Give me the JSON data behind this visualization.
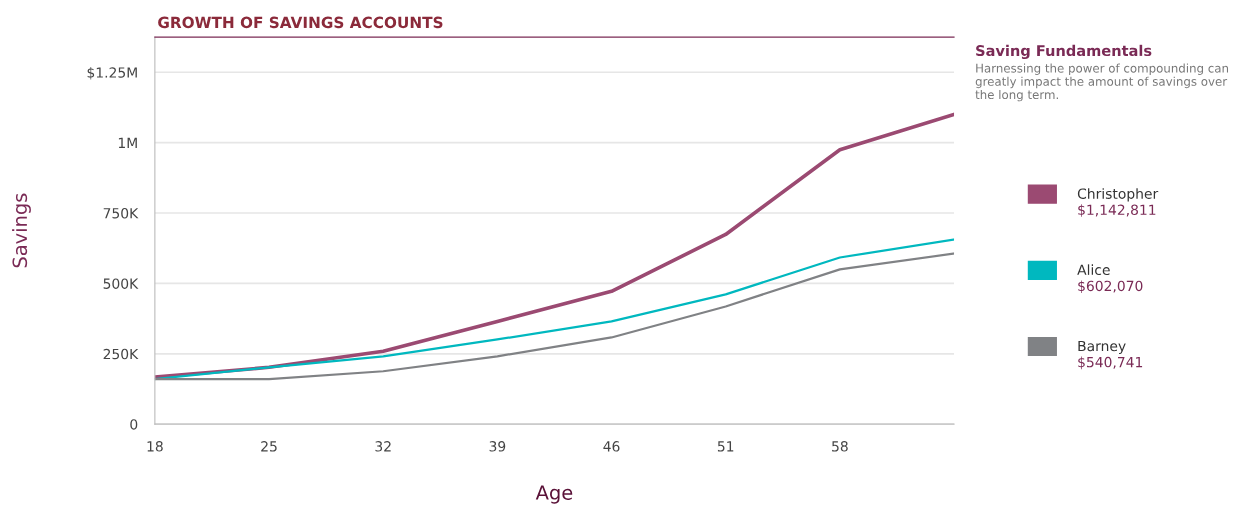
{
  "chart_data": {
    "type": "line",
    "title": "GROWTH OF SAVINGS ACCOUNTS",
    "subtitle": "Saving Fundamentals",
    "xlabel": "Age",
    "ylabel": "Savings",
    "categories": [
      "18",
      "25",
      "32",
      "39",
      "46",
      "51",
      "58",
      null
    ],
    "series": [
      {
        "name": "Christopher",
        "color": "#9b4a72",
        "values": [
          167000,
          202000,
          259000,
          365000,
          472000,
          674000,
          975000,
          1100000
        ]
      },
      {
        "name": "Alice",
        "color": "#00b8bf",
        "values": [
          160000,
          202000,
          241000,
          301000,
          365000,
          461000,
          592000,
          656000
        ]
      },
      {
        "name": "Barney",
        "color": "#808285",
        "values": [
          160000,
          160000,
          188000,
          241000,
          308000,
          418000,
          550000,
          606000
        ]
      }
    ],
    "ylim": [
      0,
      1375000
    ],
    "yticks": [
      0,
      {
        "value": 250000,
        "label": "250K"
      },
      {
        "value": 500000,
        "label": "500K"
      },
      {
        "value": 750000,
        "label": "750K"
      },
      {
        "value": 1000000,
        "label": "1M"
      },
      {
        "value": 1250000,
        "label": "$1.25M"
      }
    ],
    "grid": "y",
    "legend": "right",
    "marker": "none",
    "line_style": "solid",
    "annotations": [
      "Harnessing the power of compounding can greatly impact the amount of savings over the long term.",
      "$1,142,811",
      "$602,070",
      "$540,741"
    ]
  }
}
